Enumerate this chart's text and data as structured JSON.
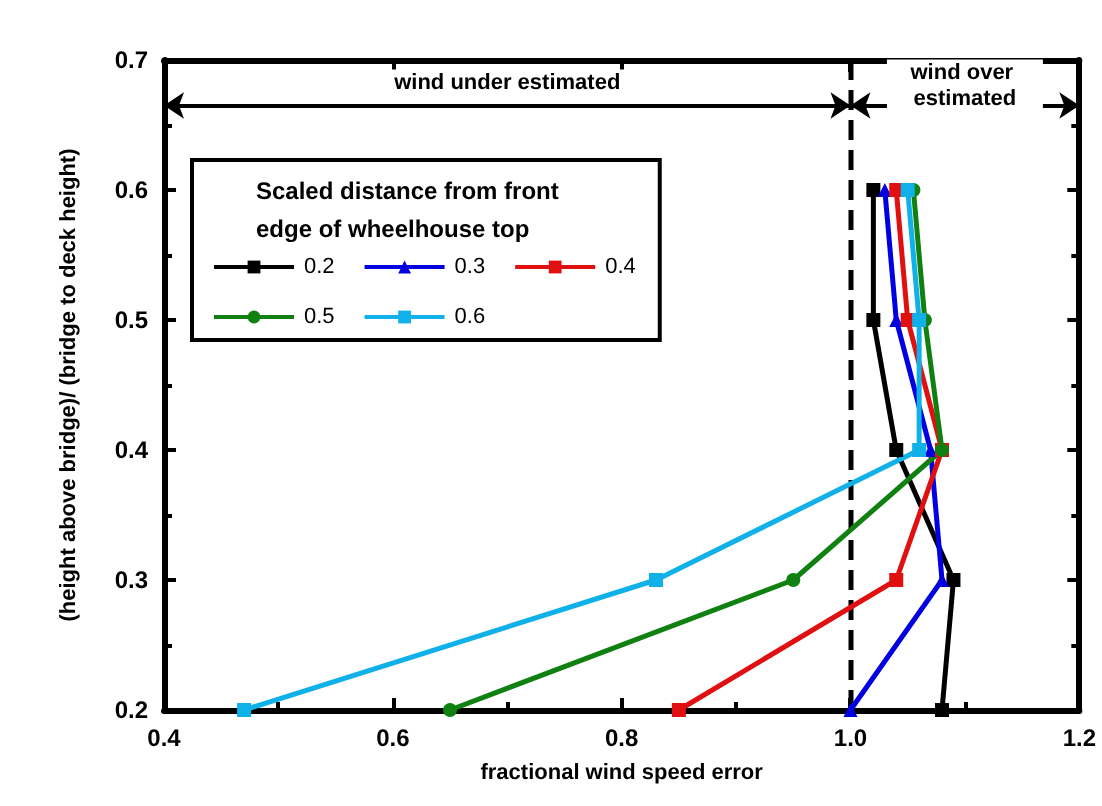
{
  "chart_data": {
    "type": "line",
    "xlabel": "fractional wind speed error",
    "ylabel": "(height above bridge)/ (bridge to deck height)",
    "legend_title": "Scaled distance from front edge of wheelhouse top",
    "legend": "top left",
    "grid": false,
    "xlim": [
      0.4,
      1.2
    ],
    "xticks": [
      0.4,
      0.6,
      0.8,
      {
        "value": 1,
        "label": "1.0"
      },
      1.2
    ],
    "ylim": [
      0.2,
      0.7
    ],
    "yticks": [
      0.2,
      0.3,
      0.4,
      0.5,
      0.6,
      0.7
    ],
    "ref_lines": [
      {
        "axis": "x",
        "value": 1,
        "line_style": "dashed",
        "color": "#000000"
      }
    ],
    "annotations": [
      "wind under estimated",
      "wind over estimated"
    ],
    "series": [
      {
        "name": "0.2",
        "color": "#000000",
        "marker": "square",
        "x": [
          1.02,
          1.02,
          1.04,
          1.09,
          1.08
        ],
        "values": [
          0.6,
          0.5,
          0.4,
          0.3,
          0.2
        ]
      },
      {
        "name": "0.3",
        "color": "#0000e0",
        "marker": "triangle",
        "x": [
          1.03,
          1.04,
          1.07,
          1.08,
          1.0
        ],
        "values": [
          0.6,
          0.5,
          0.4,
          0.3,
          0.2
        ]
      },
      {
        "name": "0.4",
        "color": "#e01010",
        "marker": "square",
        "x": [
          1.04,
          1.05,
          1.08,
          1.04,
          0.85
        ],
        "values": [
          0.6,
          0.5,
          0.4,
          0.3,
          0.2
        ]
      },
      {
        "name": "0.5",
        "color": "#108010",
        "marker": "circle",
        "x": [
          1.055,
          1.065,
          1.08,
          0.95,
          0.65
        ],
        "values": [
          0.6,
          0.5,
          0.4,
          0.3,
          0.2
        ]
      },
      {
        "name": "0.6",
        "color": "#10b0e8",
        "marker": "square",
        "x": [
          1.05,
          1.06,
          1.06,
          0.83,
          0.47
        ],
        "values": [
          0.6,
          0.5,
          0.4,
          0.3,
          0.2
        ]
      }
    ]
  }
}
